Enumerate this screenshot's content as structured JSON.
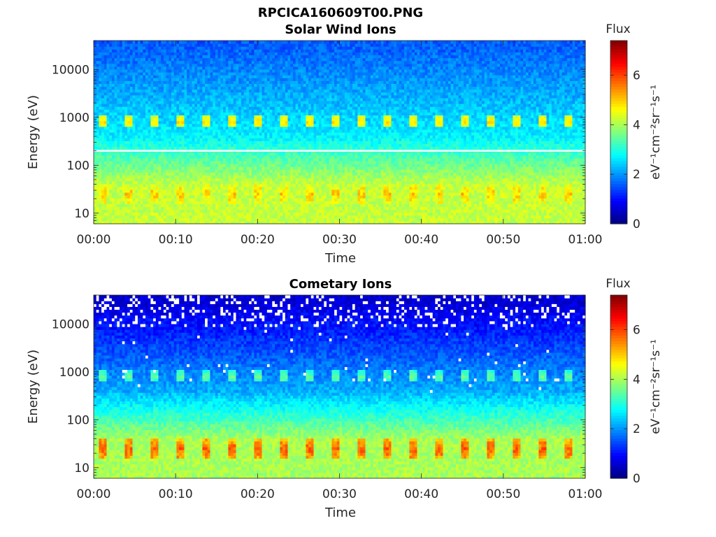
{
  "figure": {
    "filename_title": "RPCICA160609T00.PNG"
  },
  "chart_data": [
    {
      "type": "heatmap",
      "title": "Solar Wind Ions",
      "xlabel": "Time",
      "ylabel": "Energy (eV)",
      "x_ticks": [
        "00:00",
        "00:10",
        "00:20",
        "00:30",
        "00:40",
        "00:50",
        "01:00"
      ],
      "x_range": [
        "00:00",
        "01:00"
      ],
      "y_scale": "log",
      "y_ticks": [
        10,
        100,
        1000,
        10000
      ],
      "y_tick_labels": [
        "10",
        "100",
        "1000",
        "10000"
      ],
      "y_range": [
        6,
        40000
      ],
      "colorbar": {
        "title": "Flux",
        "label": "eV⁻¹cm⁻²sr⁻¹s⁻¹",
        "range": [
          0,
          7.4
        ],
        "ticks": [
          0,
          2,
          4,
          6
        ],
        "colormap": "jet"
      },
      "features": {
        "white_line_energy_ev": 200,
        "periodic_bursts_per_hour": 19,
        "burst_energy_bands_ev": [
          800,
          25
        ],
        "low_energy_flux": 4.2,
        "mid_energy_flux": 2.7,
        "high_energy_flux": 1.6,
        "burst_flux_high_band": 4.8,
        "burst_flux_low_band": 5.0
      }
    },
    {
      "type": "heatmap",
      "title": "Cometary Ions",
      "xlabel": "Time",
      "ylabel": "Energy (eV)",
      "x_ticks": [
        "00:00",
        "00:10",
        "00:20",
        "00:30",
        "00:40",
        "00:50",
        "01:00"
      ],
      "x_range": [
        "00:00",
        "01:00"
      ],
      "y_scale": "log",
      "y_ticks": [
        10,
        100,
        1000,
        10000
      ],
      "y_tick_labels": [
        "10",
        "100",
        "1000",
        "10000"
      ],
      "y_range": [
        6,
        40000
      ],
      "colorbar": {
        "title": "Flux",
        "label": "eV⁻¹cm⁻²sr⁻¹s⁻¹",
        "range": [
          0,
          7.4
        ],
        "ticks": [
          0,
          2,
          4,
          6
        ],
        "colormap": "jet"
      },
      "features": {
        "periodic_bursts_per_hour": 19,
        "burst_energy_bands_ev": [
          800,
          25
        ],
        "low_energy_flux": 4.0,
        "mid_energy_flux": 2.2,
        "high_energy_flux": 0.6,
        "burst_flux_high_band": 3.5,
        "burst_flux_low_band": 5.8,
        "missing_data_above_ev": 9000
      }
    }
  ]
}
